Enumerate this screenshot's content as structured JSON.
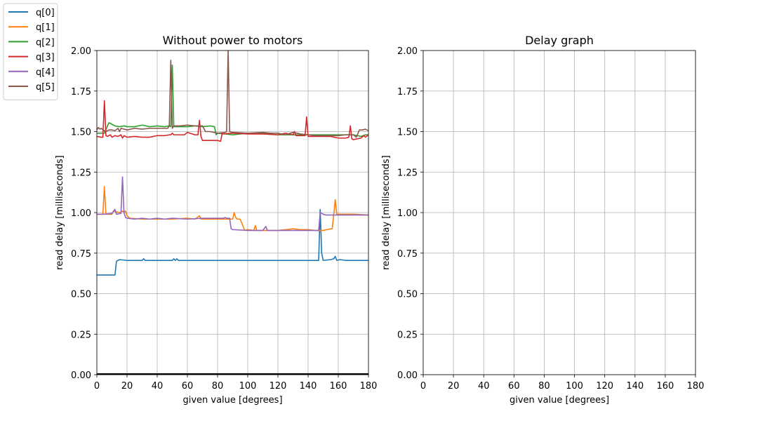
{
  "chart_data": [
    {
      "type": "line",
      "title": "Without power to motors",
      "xlabel": "given value [degrees]",
      "ylabel": "read delay [milliseconds]",
      "xlim": [
        0,
        180
      ],
      "ylim": [
        0,
        2
      ],
      "xticks": [
        "0",
        "20",
        "40",
        "60",
        "80",
        "100",
        "120",
        "140",
        "160",
        "180"
      ],
      "yticks": [
        "0.00",
        "0.25",
        "0.50",
        "0.75",
        "1.00",
        "1.25",
        "1.50",
        "1.75",
        "2.00"
      ],
      "grid": true,
      "legend_position": "outside-top-left",
      "series": [
        {
          "name": "q[0]",
          "color": "#1f77b4",
          "points": [
            [
              0,
              0.615
            ],
            [
              5,
              0.615
            ],
            [
              10,
              0.615
            ],
            [
              12,
              0.615
            ],
            [
              13,
              0.7
            ],
            [
              15,
              0.71
            ],
            [
              20,
              0.705
            ],
            [
              30,
              0.705
            ],
            [
              31,
              0.715
            ],
            [
              32,
              0.705
            ],
            [
              50,
              0.705
            ],
            [
              51,
              0.715
            ],
            [
              52,
              0.705
            ],
            [
              53,
              0.715
            ],
            [
              54,
              0.705
            ],
            [
              60,
              0.705
            ],
            [
              80,
              0.705
            ],
            [
              100,
              0.705
            ],
            [
              120,
              0.705
            ],
            [
              140,
              0.705
            ],
            [
              147,
              0.705
            ],
            [
              148,
              1.02
            ],
            [
              149,
              0.75
            ],
            [
              150,
              0.705
            ],
            [
              155,
              0.71
            ],
            [
              157,
              0.715
            ],
            [
              158,
              0.73
            ],
            [
              159,
              0.705
            ],
            [
              161,
              0.71
            ],
            [
              165,
              0.705
            ],
            [
              180,
              0.705
            ]
          ]
        },
        {
          "name": "q[1]",
          "color": "#ff7f0e",
          "points": [
            [
              0,
              0.99
            ],
            [
              4,
              0.99
            ],
            [
              5,
              1.16
            ],
            [
              6,
              0.99
            ],
            [
              10,
              0.99
            ],
            [
              11,
              1.01
            ],
            [
              15,
              1.0
            ],
            [
              17,
              1.01
            ],
            [
              18,
              1.0
            ],
            [
              19,
              1.01
            ],
            [
              20,
              0.98
            ],
            [
              22,
              0.965
            ],
            [
              30,
              0.96
            ],
            [
              40,
              0.96
            ],
            [
              50,
              0.96
            ],
            [
              60,
              0.965
            ],
            [
              65,
              0.96
            ],
            [
              68,
              0.98
            ],
            [
              69,
              0.96
            ],
            [
              80,
              0.96
            ],
            [
              86,
              0.96
            ],
            [
              90,
              0.96
            ],
            [
              91,
              1.0
            ],
            [
              92,
              0.97
            ],
            [
              93,
              0.96
            ],
            [
              95,
              0.96
            ],
            [
              98,
              0.89
            ],
            [
              100,
              0.895
            ],
            [
              104,
              0.89
            ],
            [
              105,
              0.92
            ],
            [
              106,
              0.89
            ],
            [
              110,
              0.89
            ],
            [
              120,
              0.89
            ],
            [
              125,
              0.895
            ],
            [
              130,
              0.9
            ],
            [
              135,
              0.895
            ],
            [
              140,
              0.895
            ],
            [
              145,
              0.89
            ],
            [
              150,
              0.89
            ],
            [
              155,
              0.9
            ],
            [
              156,
              0.9
            ],
            [
              158,
              1.08
            ],
            [
              159,
              0.99
            ],
            [
              160,
              0.99
            ],
            [
              170,
              0.99
            ],
            [
              180,
              0.985
            ]
          ]
        },
        {
          "name": "q[2]",
          "color": "#2ca02c",
          "points": [
            [
              0,
              1.49
            ],
            [
              5,
              1.49
            ],
            [
              8,
              1.555
            ],
            [
              10,
              1.545
            ],
            [
              12,
              1.535
            ],
            [
              15,
              1.53
            ],
            [
              18,
              1.535
            ],
            [
              20,
              1.53
            ],
            [
              25,
              1.53
            ],
            [
              30,
              1.54
            ],
            [
              35,
              1.53
            ],
            [
              40,
              1.535
            ],
            [
              45,
              1.53
            ],
            [
              48,
              1.535
            ],
            [
              49,
              1.53
            ],
            [
              50,
              1.91
            ],
            [
              51,
              1.53
            ],
            [
              55,
              1.53
            ],
            [
              60,
              1.53
            ],
            [
              65,
              1.535
            ],
            [
              70,
              1.53
            ],
            [
              75,
              1.535
            ],
            [
              78,
              1.53
            ],
            [
              79,
              1.48
            ],
            [
              80,
              1.49
            ],
            [
              90,
              1.48
            ],
            [
              100,
              1.49
            ],
            [
              110,
              1.49
            ],
            [
              120,
              1.48
            ],
            [
              130,
              1.48
            ],
            [
              140,
              1.48
            ],
            [
              150,
              1.48
            ],
            [
              160,
              1.48
            ],
            [
              170,
              1.48
            ],
            [
              175,
              1.47
            ],
            [
              178,
              1.48
            ],
            [
              180,
              1.48
            ]
          ]
        },
        {
          "name": "q[3]",
          "color": "#d62728",
          "points": [
            [
              0,
              1.47
            ],
            [
              3,
              1.465
            ],
            [
              4,
              1.465
            ],
            [
              5,
              1.69
            ],
            [
              6,
              1.475
            ],
            [
              7,
              1.47
            ],
            [
              9,
              1.48
            ],
            [
              10,
              1.465
            ],
            [
              12,
              1.475
            ],
            [
              14,
              1.47
            ],
            [
              16,
              1.48
            ],
            [
              17,
              1.46
            ],
            [
              18,
              1.475
            ],
            [
              20,
              1.465
            ],
            [
              25,
              1.47
            ],
            [
              30,
              1.465
            ],
            [
              35,
              1.465
            ],
            [
              40,
              1.475
            ],
            [
              45,
              1.475
            ],
            [
              48,
              1.48
            ],
            [
              49,
              1.48
            ],
            [
              50,
              1.49
            ],
            [
              51,
              1.48
            ],
            [
              55,
              1.48
            ],
            [
              58,
              1.48
            ],
            [
              60,
              1.495
            ],
            [
              65,
              1.48
            ],
            [
              67,
              1.48
            ],
            [
              68,
              1.57
            ],
            [
              69,
              1.47
            ],
            [
              70,
              1.445
            ],
            [
              75,
              1.445
            ],
            [
              80,
              1.445
            ],
            [
              82,
              1.44
            ],
            [
              83,
              1.485
            ],
            [
              90,
              1.49
            ],
            [
              100,
              1.485
            ],
            [
              110,
              1.485
            ],
            [
              120,
              1.48
            ],
            [
              125,
              1.49
            ],
            [
              130,
              1.48
            ],
            [
              131,
              1.5
            ],
            [
              132,
              1.475
            ],
            [
              135,
              1.475
            ],
            [
              138,
              1.475
            ],
            [
              139,
              1.59
            ],
            [
              140,
              1.47
            ],
            [
              145,
              1.47
            ],
            [
              150,
              1.47
            ],
            [
              155,
              1.47
            ],
            [
              160,
              1.46
            ],
            [
              165,
              1.46
            ],
            [
              167,
              1.465
            ],
            [
              168,
              1.535
            ],
            [
              169,
              1.455
            ],
            [
              170,
              1.45
            ],
            [
              175,
              1.46
            ],
            [
              177,
              1.475
            ],
            [
              178,
              1.465
            ],
            [
              180,
              1.48
            ]
          ]
        },
        {
          "name": "q[4]",
          "color": "#9467bd",
          "points": [
            [
              0,
              0.99
            ],
            [
              5,
              0.99
            ],
            [
              10,
              0.995
            ],
            [
              12,
              1.02
            ],
            [
              13,
              0.99
            ],
            [
              16,
              0.995
            ],
            [
              17,
              1.22
            ],
            [
              18,
              1.0
            ],
            [
              19,
              0.97
            ],
            [
              20,
              0.965
            ],
            [
              25,
              0.96
            ],
            [
              30,
              0.965
            ],
            [
              35,
              0.96
            ],
            [
              40,
              0.965
            ],
            [
              45,
              0.96
            ],
            [
              50,
              0.965
            ],
            [
              60,
              0.96
            ],
            [
              70,
              0.965
            ],
            [
              80,
              0.965
            ],
            [
              84,
              0.965
            ],
            [
              85,
              0.97
            ],
            [
              86,
              0.965
            ],
            [
              88,
              0.965
            ],
            [
              89,
              0.9
            ],
            [
              90,
              0.895
            ],
            [
              100,
              0.89
            ],
            [
              110,
              0.89
            ],
            [
              112,
              0.915
            ],
            [
              113,
              0.89
            ],
            [
              120,
              0.89
            ],
            [
              130,
              0.89
            ],
            [
              140,
              0.89
            ],
            [
              147,
              0.89
            ],
            [
              148,
              1.0
            ],
            [
              150,
              0.99
            ],
            [
              152,
              0.985
            ],
            [
              160,
              0.985
            ],
            [
              170,
              0.985
            ],
            [
              180,
              0.985
            ]
          ]
        },
        {
          "name": "q[5]",
          "color": "#8c564b",
          "points": [
            [
              0,
              1.51
            ],
            [
              1,
              1.525
            ],
            [
              2,
              1.515
            ],
            [
              3,
              1.52
            ],
            [
              4,
              1.51
            ],
            [
              6,
              1.5
            ],
            [
              8,
              1.51
            ],
            [
              10,
              1.51
            ],
            [
              12,
              1.505
            ],
            [
              14,
              1.52
            ],
            [
              15,
              1.5
            ],
            [
              16,
              1.52
            ],
            [
              18,
              1.515
            ],
            [
              20,
              1.51
            ],
            [
              25,
              1.52
            ],
            [
              30,
              1.515
            ],
            [
              35,
              1.52
            ],
            [
              40,
              1.52
            ],
            [
              45,
              1.52
            ],
            [
              47,
              1.52
            ],
            [
              48,
              1.535
            ],
            [
              49,
              1.94
            ],
            [
              50,
              1.52
            ],
            [
              51,
              1.535
            ],
            [
              55,
              1.535
            ],
            [
              60,
              1.54
            ],
            [
              65,
              1.535
            ],
            [
              70,
              1.535
            ],
            [
              72,
              1.5
            ],
            [
              75,
              1.5
            ],
            [
              80,
              1.49
            ],
            [
              85,
              1.495
            ],
            [
              86,
              1.5
            ],
            [
              87,
              2.0
            ],
            [
              88,
              1.5
            ],
            [
              90,
              1.495
            ],
            [
              100,
              1.49
            ],
            [
              110,
              1.495
            ],
            [
              115,
              1.49
            ],
            [
              120,
              1.49
            ],
            [
              125,
              1.48
            ],
            [
              130,
              1.495
            ],
            [
              135,
              1.485
            ],
            [
              140,
              1.48
            ],
            [
              145,
              1.475
            ],
            [
              150,
              1.475
            ],
            [
              160,
              1.475
            ],
            [
              165,
              1.48
            ],
            [
              170,
              1.48
            ],
            [
              172,
              1.465
            ],
            [
              174,
              1.51
            ],
            [
              176,
              1.51
            ],
            [
              178,
              1.515
            ],
            [
              180,
              1.505
            ]
          ]
        }
      ]
    },
    {
      "type": "line",
      "title": "Delay graph",
      "xlabel": "given value [degrees]",
      "ylabel": "read delay [milliseconds]",
      "xlim": [
        0,
        180
      ],
      "ylim": [
        0,
        2
      ],
      "xticks": [
        "0",
        "20",
        "40",
        "60",
        "80",
        "100",
        "120",
        "140",
        "160",
        "180"
      ],
      "yticks": [
        "0.00",
        "0.25",
        "0.50",
        "0.75",
        "1.00",
        "1.25",
        "1.50",
        "1.75",
        "2.00"
      ],
      "grid": true,
      "series": []
    }
  ]
}
